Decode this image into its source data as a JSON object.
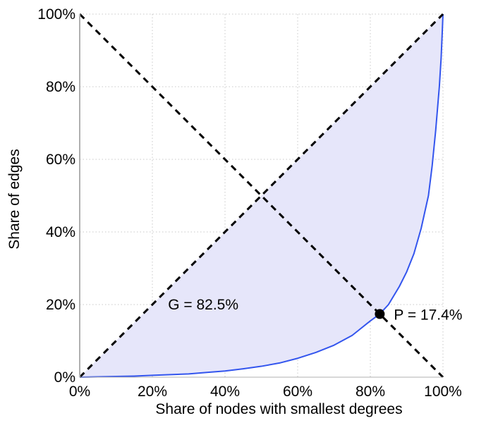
{
  "chart_data": {
    "type": "area",
    "title": "",
    "xlabel": "Share of nodes with smallest degrees",
    "ylabel": "Share of edges",
    "xlim": [
      0,
      100
    ],
    "ylim": [
      0,
      100
    ],
    "grid": true,
    "x_ticks": [
      0,
      20,
      40,
      60,
      80,
      100
    ],
    "y_ticks": [
      0,
      20,
      40,
      60,
      80,
      100
    ],
    "x_tick_labels": [
      "0%",
      "20%",
      "40%",
      "60%",
      "80%",
      "100%"
    ],
    "y_tick_labels": [
      "0%",
      "20%",
      "40%",
      "60%",
      "80%",
      "100%"
    ],
    "series": [
      {
        "name": "Lorenz curve",
        "x": [
          0,
          5,
          10,
          15,
          20,
          25,
          30,
          35,
          40,
          45,
          50,
          55,
          60,
          65,
          70,
          75,
          80,
          82.6,
          85,
          88,
          90,
          92,
          94,
          96,
          97,
          98,
          99,
          99.5,
          99.8,
          100
        ],
        "y": [
          0,
          0.1,
          0.2,
          0.3,
          0.5,
          0.7,
          0.9,
          1.3,
          1.7,
          2.3,
          3.0,
          3.9,
          5.2,
          6.8,
          8.8,
          11.5,
          15.5,
          17.4,
          20,
          25,
          29,
          34,
          41,
          50,
          58,
          68,
          80,
          88,
          95,
          100
        ],
        "color": "#3355ee",
        "fill": "#e6e6fa"
      },
      {
        "name": "Equality line",
        "x": [
          0,
          100
        ],
        "y": [
          0,
          100
        ],
        "style": "dashed",
        "color": "#000000"
      },
      {
        "name": "Anti-diagonal",
        "x": [
          0,
          100
        ],
        "y": [
          100,
          0
        ],
        "style": "dashed",
        "color": "#000000"
      }
    ],
    "points": [
      {
        "name": "P",
        "x": 82.6,
        "y": 17.4,
        "label": "P = 17.4%"
      }
    ],
    "annotations": [
      {
        "text": "G = 82.5%",
        "x": 34,
        "y": 20
      }
    ]
  }
}
